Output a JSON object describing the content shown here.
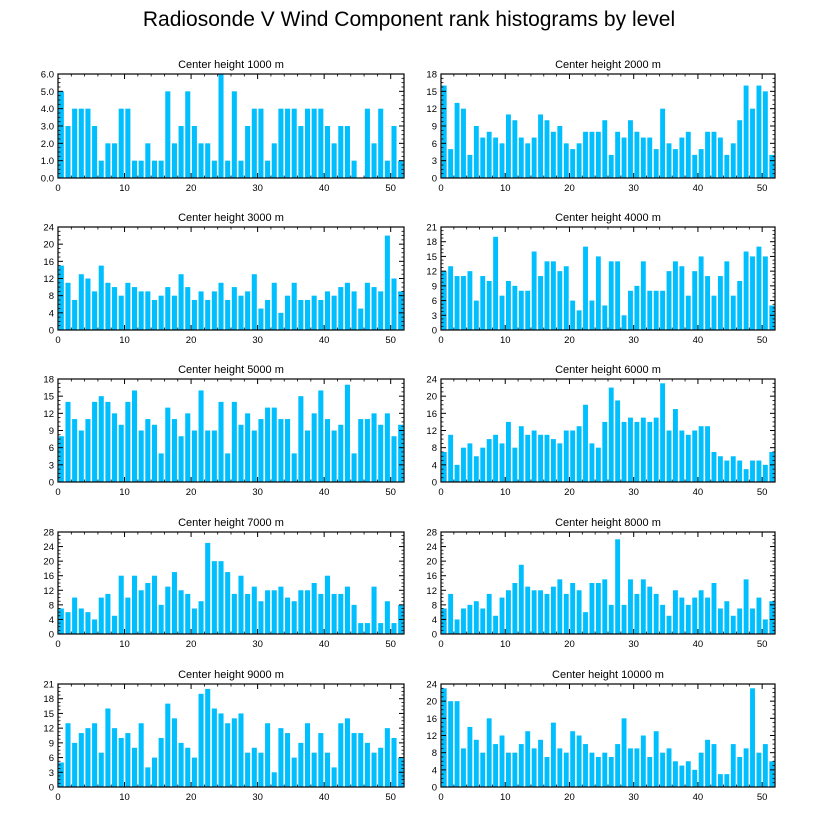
{
  "title": "Radiosonde V Wind Component rank histograms by level",
  "bar_color": "#00bfff",
  "chart_data": [
    {
      "type": "bar",
      "title": "Center height 1000 m",
      "x": [
        0,
        1,
        2,
        3,
        4,
        5,
        6,
        7,
        8,
        9,
        10,
        11,
        12,
        13,
        14,
        15,
        16,
        17,
        18,
        19,
        20,
        21,
        22,
        23,
        24,
        25,
        26,
        27,
        28,
        29,
        30,
        31,
        32,
        33,
        34,
        35,
        36,
        37,
        38,
        39,
        40,
        41,
        42,
        43,
        44,
        45,
        46,
        47,
        48,
        49,
        50,
        51
      ],
      "values": [
        5,
        3,
        4,
        4,
        4,
        3,
        1,
        2,
        2,
        4,
        4,
        1,
        1,
        2,
        1,
        1,
        5,
        2,
        3,
        5,
        3,
        2,
        2,
        1,
        6,
        1,
        5,
        1,
        3,
        4,
        4,
        1,
        2,
        4,
        4,
        4,
        3,
        4,
        4,
        4,
        3,
        2,
        3,
        3,
        1,
        0,
        4,
        2,
        4,
        1,
        3,
        1
      ],
      "xlim": [
        0,
        52
      ],
      "xticks": [
        0,
        10,
        20,
        30,
        40,
        50
      ],
      "ylim": [
        0,
        6
      ],
      "yticks": [
        0,
        1,
        2,
        3,
        4,
        5,
        6
      ],
      "ytick_labels": [
        "0.0",
        "1.0",
        "2.0",
        "3.0",
        "4.0",
        "5.0",
        "6.0"
      ]
    },
    {
      "type": "bar",
      "title": "Center height 2000 m",
      "x": [
        0,
        1,
        2,
        3,
        4,
        5,
        6,
        7,
        8,
        9,
        10,
        11,
        12,
        13,
        14,
        15,
        16,
        17,
        18,
        19,
        20,
        21,
        22,
        23,
        24,
        25,
        26,
        27,
        28,
        29,
        30,
        31,
        32,
        33,
        34,
        35,
        36,
        37,
        38,
        39,
        40,
        41,
        42,
        43,
        44,
        45,
        46,
        47,
        48,
        49,
        50,
        51
      ],
      "values": [
        16,
        5,
        13,
        12,
        4,
        9,
        7,
        8,
        7,
        6,
        11,
        10,
        7,
        6,
        7,
        11,
        10,
        8,
        9,
        6,
        5,
        6,
        8,
        8,
        8,
        10,
        4,
        8,
        7,
        10,
        8,
        7,
        7,
        5,
        12,
        6,
        5,
        7,
        8,
        4,
        5,
        8,
        8,
        7,
        4,
        6,
        10,
        16,
        12,
        16,
        15,
        4
      ],
      "xlim": [
        0,
        52
      ],
      "xticks": [
        0,
        10,
        20,
        30,
        40,
        50
      ],
      "ylim": [
        0,
        18
      ],
      "yticks": [
        0,
        3,
        6,
        9,
        12,
        15,
        18
      ],
      "ytick_labels": [
        "0",
        "3",
        "6",
        "9",
        "12",
        "15",
        "18"
      ]
    },
    {
      "type": "bar",
      "title": "Center height 3000 m",
      "x": [
        0,
        1,
        2,
        3,
        4,
        5,
        6,
        7,
        8,
        9,
        10,
        11,
        12,
        13,
        14,
        15,
        16,
        17,
        18,
        19,
        20,
        21,
        22,
        23,
        24,
        25,
        26,
        27,
        28,
        29,
        30,
        31,
        32,
        33,
        34,
        35,
        36,
        37,
        38,
        39,
        40,
        41,
        42,
        43,
        44,
        45,
        46,
        47,
        48,
        49,
        50,
        51
      ],
      "values": [
        15,
        11,
        7,
        13,
        12,
        9,
        15,
        11,
        10,
        8,
        11,
        10,
        9,
        9,
        7,
        8,
        10,
        8,
        13,
        10,
        7,
        9,
        7,
        9,
        11,
        7,
        10,
        8,
        9,
        13,
        5,
        7,
        11,
        4,
        8,
        11,
        7,
        7,
        8,
        7,
        9,
        8,
        10,
        11,
        9,
        5,
        11,
        10,
        9,
        22,
        12,
        9
      ],
      "xlim": [
        0,
        52
      ],
      "xticks": [
        0,
        10,
        20,
        30,
        40,
        50
      ],
      "ylim": [
        0,
        24
      ],
      "yticks": [
        0,
        4,
        8,
        12,
        16,
        20,
        24
      ],
      "ytick_labels": [
        "0",
        "4",
        "8",
        "12",
        "16",
        "20",
        "24"
      ]
    },
    {
      "type": "bar",
      "title": "Center height 4000 m",
      "x": [
        0,
        1,
        2,
        3,
        4,
        5,
        6,
        7,
        8,
        9,
        10,
        11,
        12,
        13,
        14,
        15,
        16,
        17,
        18,
        19,
        20,
        21,
        22,
        23,
        24,
        25,
        26,
        27,
        28,
        29,
        30,
        31,
        32,
        33,
        34,
        35,
        36,
        37,
        38,
        39,
        40,
        41,
        42,
        43,
        44,
        45,
        46,
        47,
        48,
        49,
        50,
        51
      ],
      "values": [
        12,
        13,
        11,
        11,
        12,
        6,
        11,
        10,
        19,
        7,
        10,
        9,
        8,
        8,
        16,
        11,
        14,
        14,
        12,
        13,
        6,
        4,
        17,
        6,
        15,
        5,
        14,
        14,
        3,
        8,
        9,
        14,
        8,
        8,
        8,
        12,
        14,
        13,
        7,
        12,
        15,
        11,
        7,
        11,
        14,
        7,
        10,
        16,
        15,
        17,
        15,
        5
      ],
      "xlim": [
        0,
        52
      ],
      "xticks": [
        0,
        10,
        20,
        30,
        40,
        50
      ],
      "ylim": [
        0,
        21
      ],
      "yticks": [
        0,
        3,
        6,
        9,
        12,
        15,
        18,
        21
      ],
      "ytick_labels": [
        "0",
        "3",
        "6",
        "9",
        "12",
        "15",
        "18",
        "21"
      ]
    },
    {
      "type": "bar",
      "title": "Center height 5000 m",
      "x": [
        0,
        1,
        2,
        3,
        4,
        5,
        6,
        7,
        8,
        9,
        10,
        11,
        12,
        13,
        14,
        15,
        16,
        17,
        18,
        19,
        20,
        21,
        22,
        23,
        24,
        25,
        26,
        27,
        28,
        29,
        30,
        31,
        32,
        33,
        34,
        35,
        36,
        37,
        38,
        39,
        40,
        41,
        42,
        43,
        44,
        45,
        46,
        47,
        48,
        49,
        50,
        51
      ],
      "values": [
        8,
        14,
        11,
        9,
        11,
        14,
        15,
        14,
        12,
        10,
        14,
        16,
        9,
        11,
        10,
        5,
        13,
        11,
        8,
        12,
        9,
        16,
        9,
        9,
        14,
        5,
        14,
        10,
        12,
        9,
        11,
        13,
        13,
        11,
        11,
        5,
        15,
        9,
        12,
        16,
        11,
        9,
        10,
        17,
        5,
        11,
        11,
        12,
        10,
        12,
        8,
        10
      ],
      "xlim": [
        0,
        52
      ],
      "xticks": [
        0,
        10,
        20,
        30,
        40,
        50
      ],
      "ylim": [
        0,
        18
      ],
      "yticks": [
        0,
        3,
        6,
        9,
        12,
        15,
        18
      ],
      "ytick_labels": [
        "0",
        "3",
        "6",
        "9",
        "12",
        "15",
        "18"
      ]
    },
    {
      "type": "bar",
      "title": "Center height 6000 m",
      "x": [
        0,
        1,
        2,
        3,
        4,
        5,
        6,
        7,
        8,
        9,
        10,
        11,
        12,
        13,
        14,
        15,
        16,
        17,
        18,
        19,
        20,
        21,
        22,
        23,
        24,
        25,
        26,
        27,
        28,
        29,
        30,
        31,
        32,
        33,
        34,
        35,
        36,
        37,
        38,
        39,
        40,
        41,
        42,
        43,
        44,
        45,
        46,
        47,
        48,
        49,
        50,
        51
      ],
      "values": [
        7,
        11,
        4,
        8,
        9,
        6,
        8,
        10,
        11,
        9,
        14,
        8,
        13,
        11,
        12,
        11,
        11,
        10,
        9,
        12,
        12,
        13,
        18,
        9,
        8,
        14,
        22,
        19,
        14,
        15,
        14,
        15,
        14,
        15,
        23,
        12,
        17,
        12,
        11,
        12,
        13,
        13,
        7,
        6,
        5,
        6,
        5,
        3,
        5,
        5,
        4,
        7
      ],
      "xlim": [
        0,
        52
      ],
      "xticks": [
        0,
        10,
        20,
        30,
        40,
        50
      ],
      "ylim": [
        0,
        24
      ],
      "yticks": [
        0,
        4,
        8,
        12,
        16,
        20,
        24
      ],
      "ytick_labels": [
        "0",
        "4",
        "8",
        "12",
        "16",
        "20",
        "24"
      ]
    },
    {
      "type": "bar",
      "title": "Center height 7000 m",
      "x": [
        0,
        1,
        2,
        3,
        4,
        5,
        6,
        7,
        8,
        9,
        10,
        11,
        12,
        13,
        14,
        15,
        16,
        17,
        18,
        19,
        20,
        21,
        22,
        23,
        24,
        25,
        26,
        27,
        28,
        29,
        30,
        31,
        32,
        33,
        34,
        35,
        36,
        37,
        38,
        39,
        40,
        41,
        42,
        43,
        44,
        45,
        46,
        47,
        48,
        49,
        50,
        51
      ],
      "values": [
        7,
        6,
        10,
        7,
        6,
        4,
        10,
        11,
        5,
        16,
        10,
        16,
        12,
        14,
        16,
        8,
        13,
        17,
        12,
        11,
        7,
        9,
        25,
        20,
        20,
        17,
        11,
        16,
        11,
        13,
        9,
        12,
        12,
        13,
        10,
        9,
        12,
        12,
        14,
        11,
        16,
        11,
        11,
        13,
        8,
        3,
        3,
        13,
        3,
        9,
        3,
        8
      ],
      "xlim": [
        0,
        52
      ],
      "xticks": [
        0,
        10,
        20,
        30,
        40,
        50
      ],
      "ylim": [
        0,
        28
      ],
      "yticks": [
        0,
        4,
        8,
        12,
        16,
        20,
        24,
        28
      ],
      "ytick_labels": [
        "0",
        "4",
        "8",
        "12",
        "16",
        "20",
        "24",
        "28"
      ]
    },
    {
      "type": "bar",
      "title": "Center height 8000 m",
      "x": [
        0,
        1,
        2,
        3,
        4,
        5,
        6,
        7,
        8,
        9,
        10,
        11,
        12,
        13,
        14,
        15,
        16,
        17,
        18,
        19,
        20,
        21,
        22,
        23,
        24,
        25,
        26,
        27,
        28,
        29,
        30,
        31,
        32,
        33,
        34,
        35,
        36,
        37,
        38,
        39,
        40,
        41,
        42,
        43,
        44,
        45,
        46,
        47,
        48,
        49,
        50,
        51
      ],
      "values": [
        7,
        11,
        4,
        7,
        8,
        9,
        7,
        11,
        5,
        10,
        12,
        14,
        19,
        13,
        12,
        12,
        11,
        13,
        15,
        11,
        14,
        12,
        6,
        14,
        14,
        15,
        8,
        26,
        8,
        15,
        11,
        15,
        13,
        11,
        8,
        5,
        12,
        10,
        8,
        10,
        12,
        10,
        14,
        7,
        9,
        5,
        7,
        15,
        7,
        10,
        4,
        9
      ],
      "xlim": [
        0,
        52
      ],
      "xticks": [
        0,
        10,
        20,
        30,
        40,
        50
      ],
      "ylim": [
        0,
        28
      ],
      "yticks": [
        0,
        4,
        8,
        12,
        16,
        20,
        24,
        28
      ],
      "ytick_labels": [
        "0",
        "4",
        "8",
        "12",
        "16",
        "20",
        "24",
        "28"
      ]
    },
    {
      "type": "bar",
      "title": "Center height 9000 m",
      "x": [
        0,
        1,
        2,
        3,
        4,
        5,
        6,
        7,
        8,
        9,
        10,
        11,
        12,
        13,
        14,
        15,
        16,
        17,
        18,
        19,
        20,
        21,
        22,
        23,
        24,
        25,
        26,
        27,
        28,
        29,
        30,
        31,
        32,
        33,
        34,
        35,
        36,
        37,
        38,
        39,
        40,
        41,
        42,
        43,
        44,
        45,
        46,
        47,
        48,
        49,
        50,
        51
      ],
      "values": [
        5,
        13,
        9,
        11,
        12,
        13,
        7,
        16,
        12,
        10,
        11,
        8,
        13,
        4,
        6,
        10,
        17,
        14,
        9,
        8,
        6,
        19,
        20,
        16,
        15,
        13,
        14,
        15,
        7,
        8,
        7,
        13,
        3,
        12,
        11,
        6,
        9,
        13,
        7,
        11,
        7,
        4,
        13,
        14,
        11,
        11,
        9,
        7,
        8,
        12,
        10,
        6
      ],
      "xlim": [
        0,
        52
      ],
      "xticks": [
        0,
        10,
        20,
        30,
        40,
        50
      ],
      "ylim": [
        0,
        21
      ],
      "yticks": [
        0,
        3,
        6,
        9,
        12,
        15,
        18,
        21
      ],
      "ytick_labels": [
        "0",
        "3",
        "6",
        "9",
        "12",
        "15",
        "18",
        "21"
      ]
    },
    {
      "type": "bar",
      "title": "Center height 10000 m",
      "x": [
        0,
        1,
        2,
        3,
        4,
        5,
        6,
        7,
        8,
        9,
        10,
        11,
        12,
        13,
        14,
        15,
        16,
        17,
        18,
        19,
        20,
        21,
        22,
        23,
        24,
        25,
        26,
        27,
        28,
        29,
        30,
        31,
        32,
        33,
        34,
        35,
        36,
        37,
        38,
        39,
        40,
        41,
        42,
        43,
        44,
        45,
        46,
        47,
        48,
        49,
        50,
        51
      ],
      "values": [
        23,
        20,
        20,
        9,
        14,
        11,
        8,
        16,
        10,
        12,
        8,
        8,
        10,
        13,
        9,
        11,
        7,
        15,
        9,
        8,
        13,
        12,
        10,
        8,
        7,
        8,
        7,
        10,
        16,
        9,
        9,
        12,
        7,
        13,
        8,
        9,
        6,
        5,
        6,
        4,
        8,
        11,
        10,
        3,
        3,
        10,
        7,
        9,
        23,
        8,
        10,
        6
      ],
      "xlim": [
        0,
        52
      ],
      "xticks": [
        0,
        10,
        20,
        30,
        40,
        50
      ],
      "ylim": [
        0,
        24
      ],
      "yticks": [
        0,
        4,
        8,
        12,
        16,
        20,
        24
      ],
      "ytick_labels": [
        "0",
        "4",
        "8",
        "12",
        "16",
        "20",
        "24"
      ]
    }
  ]
}
